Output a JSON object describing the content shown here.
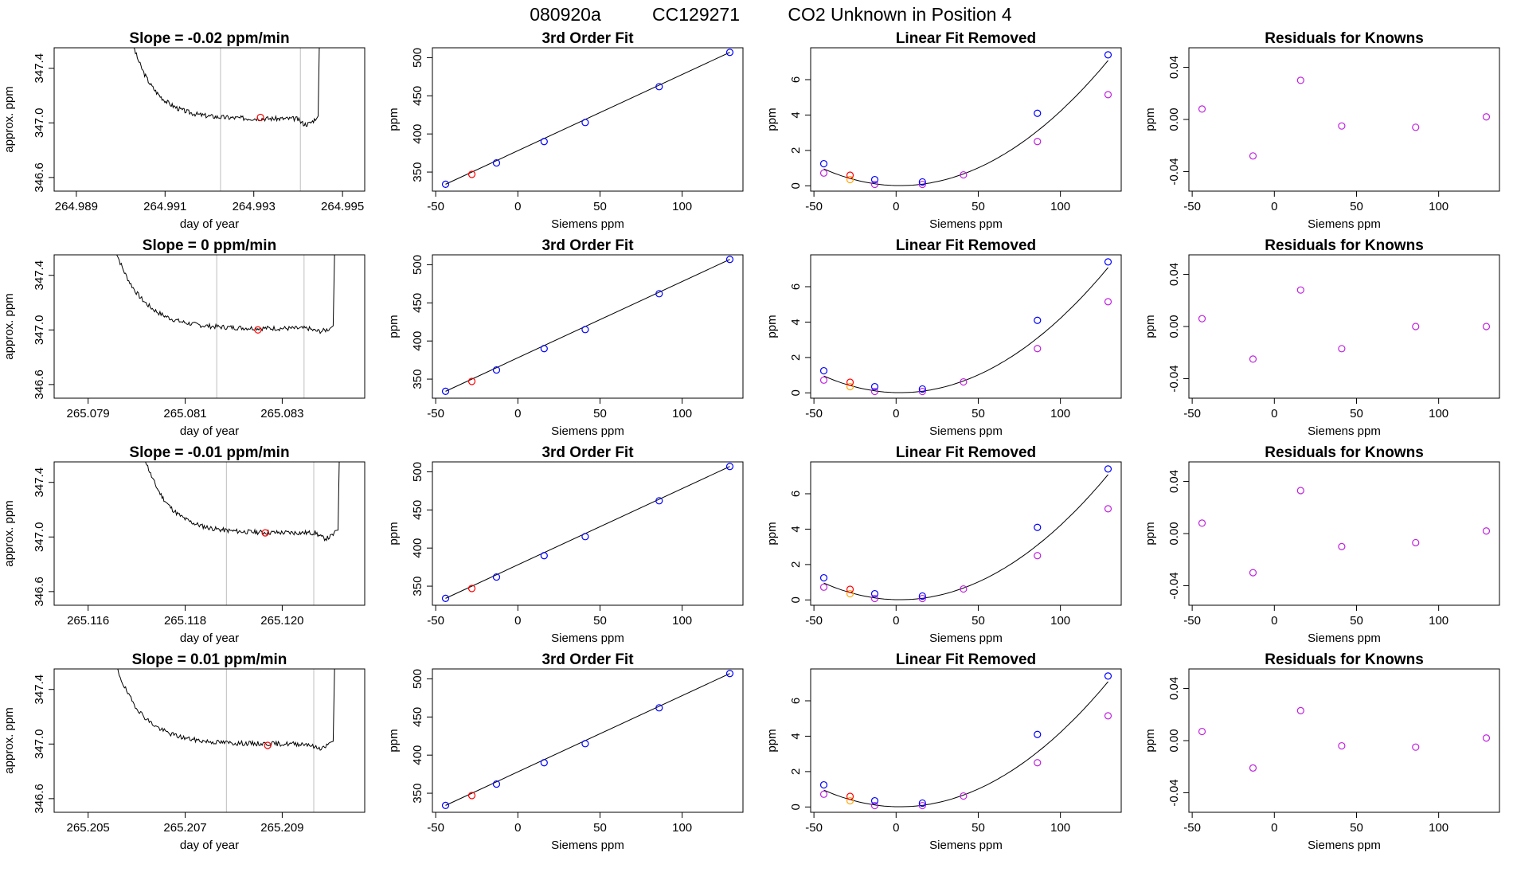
{
  "figure": {
    "title_parts": [
      "080920a",
      "CC129271",
      "CO2 Unknown in Position  4"
    ]
  },
  "colors": {
    "line": "#000000",
    "ref_line": "#bebebe",
    "red_point": "#ff0000",
    "blue_point": "#0000ff",
    "magenta_point": "#c020e0",
    "orange_point": "#ffa500"
  },
  "chart_data": [
    {
      "row": 1,
      "panel": "trace",
      "type": "line",
      "title": "Slope =  -0.02  ppm/min",
      "xlabel": "day of year",
      "ylabel": "approx. ppm",
      "xlim": [
        264.9885,
        264.9955
      ],
      "ylim": [
        346.5,
        347.55
      ],
      "xticks": [
        "264.989",
        "264.991",
        "264.993",
        "264.995"
      ],
      "yticks": [
        "346.6",
        "347.0",
        "347.4"
      ],
      "ref_lines": [
        264.99225,
        264.99405
      ],
      "start": 264.99025,
      "end": 264.99445,
      "level": 347.03,
      "drop": 347.6,
      "end_dip": 346.99,
      "marker": [
        264.99315,
        347.04
      ],
      "seed": 3
    },
    {
      "row": 1,
      "panel": "fit",
      "type": "scatter",
      "title": "3rd Order Fit",
      "xlabel": "Siemens ppm",
      "ylabel": "ppm",
      "xlim": [
        -52,
        137
      ],
      "ylim": [
        325,
        513
      ],
      "xticks": [
        "-50",
        "0",
        "50",
        "100"
      ],
      "yticks": [
        "350",
        "400",
        "450",
        "500"
      ],
      "blue_points": [
        [
          -44,
          334
        ],
        [
          -13,
          362
        ],
        [
          16,
          390
        ],
        [
          41,
          415
        ],
        [
          86,
          462
        ],
        [
          129,
          507
        ]
      ],
      "red_points": [
        [
          -28,
          347
        ]
      ],
      "line": [
        [
          -44,
          334
        ],
        [
          129,
          507
        ]
      ]
    },
    {
      "row": 1,
      "panel": "linear_removed",
      "type": "scatter",
      "title": "Linear Fit Removed",
      "xlabel": "Siemens ppm",
      "ylabel": "ppm",
      "xlim": [
        -52,
        137
      ],
      "ylim": [
        -0.3,
        7.8
      ],
      "xticks": [
        "-50",
        "0",
        "50",
        "100"
      ],
      "yticks": [
        "0",
        "2",
        "4",
        "6"
      ],
      "curve": {
        "a": 0.00044,
        "b": -0.002,
        "c": 0.015,
        "from": -44,
        "to": 129
      },
      "blue_points": [
        [
          -44,
          1.25
        ],
        [
          -13,
          0.35
        ],
        [
          16,
          0.22
        ],
        [
          86,
          4.1
        ],
        [
          129,
          7.4
        ]
      ],
      "red_points": [
        [
          -28,
          0.6
        ]
      ],
      "orange_points": [
        [
          -28,
          0.35
        ]
      ],
      "magenta_points": [
        [
          -44,
          0.72
        ],
        [
          -13,
          0.08
        ],
        [
          16,
          0.08
        ],
        [
          41,
          0.62
        ],
        [
          86,
          2.5
        ],
        [
          129,
          5.15
        ]
      ]
    },
    {
      "row": 1,
      "panel": "residuals",
      "type": "scatter",
      "title": "Residuals for Knowns",
      "xlabel": "Siemens ppm",
      "ylabel": "ppm",
      "xlim": [
        -52,
        137
      ],
      "ylim": [
        -0.055,
        0.055
      ],
      "xticks": [
        "-50",
        "0",
        "50",
        "100"
      ],
      "yticks": [
        "-0.04",
        "0.00",
        "0.04"
      ],
      "magenta_points": [
        [
          -44,
          0.008
        ],
        [
          -13,
          -0.028
        ],
        [
          16,
          0.03
        ],
        [
          41,
          -0.005
        ],
        [
          86,
          -0.006
        ],
        [
          129,
          0.002
        ]
      ]
    },
    {
      "row": 2,
      "panel": "trace",
      "type": "line",
      "title": "Slope =  0  ppm/min",
      "xlabel": "day of year",
      "ylabel": "approx. ppm",
      "xlim": [
        265.0783,
        265.0847
      ],
      "ylim": [
        346.5,
        347.55
      ],
      "xticks": [
        "265.079",
        "265.081",
        "265.083"
      ],
      "yticks": [
        "346.6",
        "347.0",
        "347.4"
      ],
      "ref_lines": [
        265.08165,
        265.08345
      ],
      "start": 265.07955,
      "end": 265.08405,
      "level": 347.01,
      "drop": 347.6,
      "end_dip": 346.99,
      "marker": [
        265.0825,
        347.0
      ],
      "seed": 7
    },
    {
      "row": 2,
      "panel": "fit",
      "type": "scatter",
      "title": "3rd Order Fit",
      "xlabel": "Siemens ppm",
      "ylabel": "ppm",
      "xlim": [
        -52,
        137
      ],
      "ylim": [
        325,
        513
      ],
      "xticks": [
        "-50",
        "0",
        "50",
        "100"
      ],
      "yticks": [
        "350",
        "400",
        "450",
        "500"
      ],
      "blue_points": [
        [
          -44,
          334
        ],
        [
          -13,
          362
        ],
        [
          16,
          390
        ],
        [
          41,
          415
        ],
        [
          86,
          462
        ],
        [
          129,
          507
        ]
      ],
      "red_points": [
        [
          -28,
          347
        ]
      ],
      "line": [
        [
          -44,
          334
        ],
        [
          129,
          507
        ]
      ]
    },
    {
      "row": 2,
      "panel": "linear_removed",
      "type": "scatter",
      "title": "Linear Fit Removed",
      "xlabel": "Siemens ppm",
      "ylabel": "ppm",
      "xlim": [
        -52,
        137
      ],
      "ylim": [
        -0.3,
        7.8
      ],
      "xticks": [
        "-50",
        "0",
        "50",
        "100"
      ],
      "yticks": [
        "0",
        "2",
        "4",
        "6"
      ],
      "curve": {
        "a": 0.00044,
        "b": -0.002,
        "c": 0.015,
        "from": -44,
        "to": 129
      },
      "blue_points": [
        [
          -44,
          1.25
        ],
        [
          -13,
          0.35
        ],
        [
          16,
          0.22
        ],
        [
          86,
          4.1
        ],
        [
          129,
          7.4
        ]
      ],
      "red_points": [
        [
          -28,
          0.6
        ]
      ],
      "orange_points": [
        [
          -28,
          0.35
        ]
      ],
      "magenta_points": [
        [
          -44,
          0.72
        ],
        [
          -13,
          0.08
        ],
        [
          16,
          0.08
        ],
        [
          41,
          0.62
        ],
        [
          86,
          2.5
        ],
        [
          129,
          5.15
        ]
      ]
    },
    {
      "row": 2,
      "panel": "residuals",
      "type": "scatter",
      "title": "Residuals for Knowns",
      "xlabel": "Siemens ppm",
      "ylabel": "ppm",
      "xlim": [
        -52,
        137
      ],
      "ylim": [
        -0.055,
        0.055
      ],
      "xticks": [
        "-50",
        "0",
        "50",
        "100"
      ],
      "yticks": [
        "-0.04",
        "0.00",
        "0.04"
      ],
      "magenta_points": [
        [
          -44,
          0.006
        ],
        [
          -13,
          -0.025
        ],
        [
          16,
          0.028
        ],
        [
          41,
          -0.017
        ],
        [
          86,
          0.0
        ],
        [
          129,
          0.0
        ]
      ]
    },
    {
      "row": 3,
      "panel": "trace",
      "type": "line",
      "title": "Slope =  -0.01  ppm/min",
      "xlabel": "day of year",
      "ylabel": "approx. ppm",
      "xlim": [
        265.1153,
        265.1217
      ],
      "ylim": [
        346.5,
        347.55
      ],
      "xticks": [
        "265.116",
        "265.118",
        "265.120"
      ],
      "yticks": [
        "346.6",
        "347.0",
        "347.4"
      ],
      "ref_lines": [
        265.11885,
        265.12065
      ],
      "start": 265.11715,
      "end": 265.12115,
      "level": 347.03,
      "drop": 347.6,
      "end_dip": 346.99,
      "marker": [
        265.11965,
        347.03
      ],
      "seed": 11
    },
    {
      "row": 3,
      "panel": "fit",
      "type": "scatter",
      "title": "3rd Order Fit",
      "xlabel": "Siemens ppm",
      "ylabel": "ppm",
      "xlim": [
        -52,
        137
      ],
      "ylim": [
        325,
        513
      ],
      "xticks": [
        "-50",
        "0",
        "50",
        "100"
      ],
      "yticks": [
        "350",
        "400",
        "450",
        "500"
      ],
      "blue_points": [
        [
          -44,
          334
        ],
        [
          -13,
          362
        ],
        [
          16,
          390
        ],
        [
          41,
          415
        ],
        [
          86,
          462
        ],
        [
          129,
          507
        ]
      ],
      "red_points": [
        [
          -28,
          347
        ]
      ],
      "line": [
        [
          -44,
          334
        ],
        [
          129,
          507
        ]
      ]
    },
    {
      "row": 3,
      "panel": "linear_removed",
      "type": "scatter",
      "title": "Linear Fit Removed",
      "xlabel": "Siemens ppm",
      "ylabel": "ppm",
      "xlim": [
        -52,
        137
      ],
      "ylim": [
        -0.3,
        7.8
      ],
      "xticks": [
        "-50",
        "0",
        "50",
        "100"
      ],
      "yticks": [
        "0",
        "2",
        "4",
        "6"
      ],
      "curve": {
        "a": 0.00044,
        "b": -0.002,
        "c": 0.015,
        "from": -44,
        "to": 129
      },
      "blue_points": [
        [
          -44,
          1.25
        ],
        [
          -13,
          0.35
        ],
        [
          16,
          0.22
        ],
        [
          86,
          4.1
        ],
        [
          129,
          7.4
        ]
      ],
      "red_points": [
        [
          -28,
          0.6
        ]
      ],
      "orange_points": [
        [
          -28,
          0.35
        ]
      ],
      "magenta_points": [
        [
          -44,
          0.72
        ],
        [
          -13,
          0.08
        ],
        [
          16,
          0.08
        ],
        [
          41,
          0.62
        ],
        [
          86,
          2.5
        ],
        [
          129,
          5.15
        ]
      ]
    },
    {
      "row": 3,
      "panel": "residuals",
      "type": "scatter",
      "title": "Residuals for Knowns",
      "xlabel": "Siemens ppm",
      "ylabel": "ppm",
      "xlim": [
        -52,
        137
      ],
      "ylim": [
        -0.055,
        0.055
      ],
      "xticks": [
        "-50",
        "0",
        "50",
        "100"
      ],
      "yticks": [
        "-0.04",
        "0.00",
        "0.04"
      ],
      "magenta_points": [
        [
          -44,
          0.008
        ],
        [
          -13,
          -0.03
        ],
        [
          16,
          0.033
        ],
        [
          41,
          -0.01
        ],
        [
          86,
          -0.007
        ],
        [
          129,
          0.002
        ]
      ]
    },
    {
      "row": 4,
      "panel": "trace",
      "type": "line",
      "title": "Slope =  0.01  ppm/min",
      "xlabel": "day of year",
      "ylabel": "approx. ppm",
      "xlim": [
        265.2043,
        265.2107
      ],
      "ylim": [
        346.5,
        347.55
      ],
      "xticks": [
        "265.205",
        "265.207",
        "265.209"
      ],
      "yticks": [
        "346.6",
        "347.0",
        "347.4"
      ],
      "ref_lines": [
        265.20785,
        265.20965
      ],
      "start": 265.20555,
      "end": 265.21005,
      "level": 347.0,
      "drop": 347.6,
      "end_dip": 346.97,
      "marker": [
        265.2087,
        346.99
      ],
      "seed": 19
    },
    {
      "row": 4,
      "panel": "fit",
      "type": "scatter",
      "title": "3rd Order Fit",
      "xlabel": "Siemens ppm",
      "ylabel": "ppm",
      "xlim": [
        -52,
        137
      ],
      "ylim": [
        325,
        513
      ],
      "xticks": [
        "-50",
        "0",
        "50",
        "100"
      ],
      "yticks": [
        "350",
        "400",
        "450",
        "500"
      ],
      "blue_points": [
        [
          -44,
          334
        ],
        [
          -13,
          362
        ],
        [
          16,
          390
        ],
        [
          41,
          415
        ],
        [
          86,
          462
        ],
        [
          129,
          507
        ]
      ],
      "red_points": [
        [
          -28,
          347
        ]
      ],
      "line": [
        [
          -44,
          334
        ],
        [
          129,
          507
        ]
      ]
    },
    {
      "row": 4,
      "panel": "linear_removed",
      "type": "scatter",
      "title": "Linear Fit Removed",
      "xlabel": "Siemens ppm",
      "ylabel": "ppm",
      "xlim": [
        -52,
        137
      ],
      "ylim": [
        -0.3,
        7.8
      ],
      "xticks": [
        "-50",
        "0",
        "50",
        "100"
      ],
      "yticks": [
        "0",
        "2",
        "4",
        "6"
      ],
      "curve": {
        "a": 0.00044,
        "b": -0.002,
        "c": 0.015,
        "from": -44,
        "to": 129
      },
      "blue_points": [
        [
          -44,
          1.25
        ],
        [
          -13,
          0.35
        ],
        [
          16,
          0.22
        ],
        [
          86,
          4.1
        ],
        [
          129,
          7.4
        ]
      ],
      "red_points": [
        [
          -28,
          0.6
        ]
      ],
      "orange_points": [
        [
          -28,
          0.35
        ]
      ],
      "magenta_points": [
        [
          -44,
          0.72
        ],
        [
          -13,
          0.08
        ],
        [
          16,
          0.08
        ],
        [
          41,
          0.62
        ],
        [
          86,
          2.5
        ],
        [
          129,
          5.15
        ]
      ]
    },
    {
      "row": 4,
      "panel": "residuals",
      "type": "scatter",
      "title": "Residuals for Knowns",
      "xlabel": "Siemens ppm",
      "ylabel": "ppm",
      "xlim": [
        -52,
        137
      ],
      "ylim": [
        -0.055,
        0.055
      ],
      "xticks": [
        "-50",
        "0",
        "50",
        "100"
      ],
      "yticks": [
        "-0.04",
        "0.00",
        "0.04"
      ],
      "magenta_points": [
        [
          -44,
          0.007
        ],
        [
          -13,
          -0.021
        ],
        [
          16,
          0.023
        ],
        [
          41,
          -0.004
        ],
        [
          86,
          -0.005
        ],
        [
          129,
          0.002
        ]
      ]
    }
  ]
}
